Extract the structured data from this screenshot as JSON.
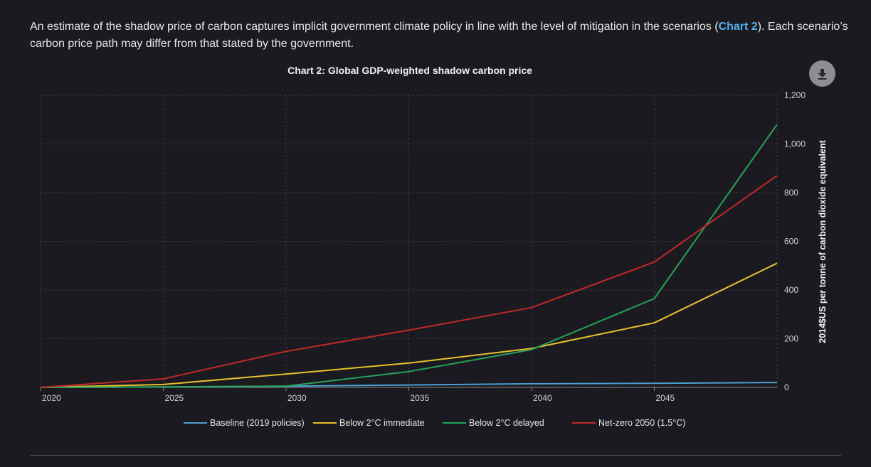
{
  "intro": {
    "text_before": "An estimate of the shadow price of carbon captures implicit government climate policy in line with the level of mitigation in the scenarios (",
    "link": "Chart 2",
    "text_after": "). Each scenario’s carbon price path may differ from that stated by the government."
  },
  "download_icon": "download-icon",
  "colors": {
    "background": "#1b1a20",
    "link": "#4fb3f0",
    "grid": "#3a3a40",
    "baseline": "#4a9fd1",
    "below2_immediate": "#e8c02c",
    "below2_delayed": "#24a35a",
    "netzero": "#c0282b"
  },
  "chart_data": {
    "type": "line",
    "title": "Chart 2: Global GDP-weighted shadow carbon price",
    "xlabel": "",
    "ylabel": "2014$US per tonne of carbon dioxide equivalent",
    "x": [
      2020,
      2025,
      2030,
      2035,
      2040,
      2045,
      2050
    ],
    "xlim": [
      2020,
      2050
    ],
    "ylim": [
      0,
      1200
    ],
    "x_ticks": [
      "2020",
      "2025",
      "2030",
      "2035",
      "2040",
      "2045"
    ],
    "y_ticks": [
      "0",
      "200",
      "400",
      "600",
      "800",
      "1,000",
      "1,200"
    ],
    "y_axis_side": "right",
    "grid": true,
    "legend_position": "bottom",
    "series": [
      {
        "name": "Baseline (2019 policies)",
        "color": "#4a9fd1",
        "values": [
          0,
          2,
          5,
          10,
          15,
          17,
          20
        ]
      },
      {
        "name": "Below 2°C immediate",
        "color": "#e8c02c",
        "values": [
          0,
          12,
          55,
          100,
          160,
          265,
          510
        ]
      },
      {
        "name": "Below 2°C delayed",
        "color": "#24a35a",
        "values": [
          0,
          2,
          5,
          65,
          155,
          365,
          1080
        ]
      },
      {
        "name": "Net-zero 2050 (1.5°C)",
        "color": "#c0282b",
        "values": [
          0,
          35,
          148,
          235,
          328,
          515,
          870
        ]
      }
    ]
  }
}
